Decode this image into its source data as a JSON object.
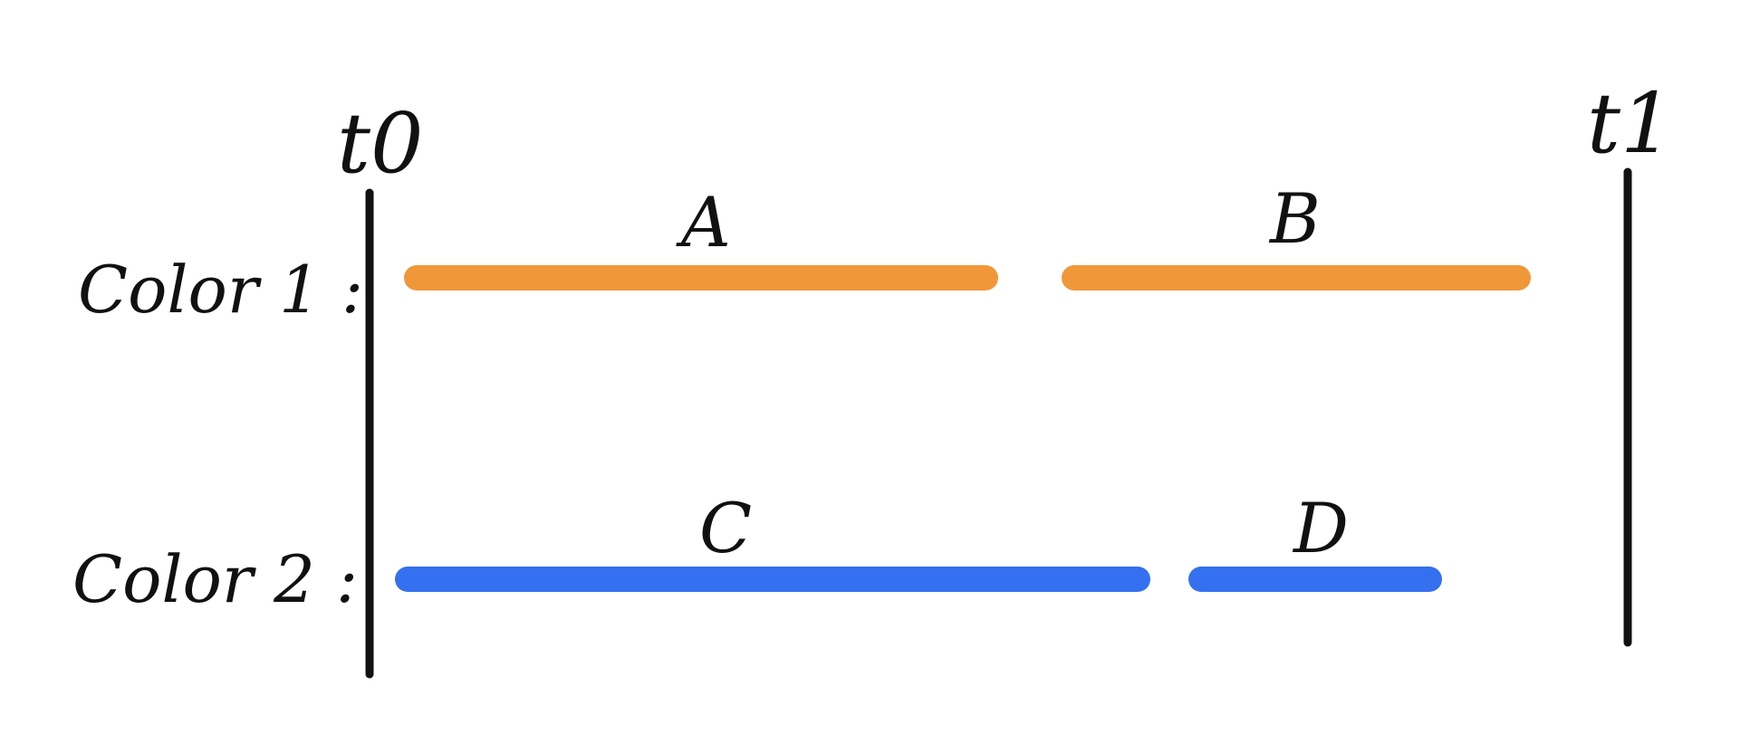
{
  "diagram": {
    "time_markers": {
      "start_label": "t0",
      "end_label": "t1"
    },
    "rows": [
      {
        "label": "Color 1 :",
        "color": "#F0973A",
        "segments": [
          {
            "label": "A"
          },
          {
            "label": "B"
          }
        ]
      },
      {
        "label": "Color 2 :",
        "color": "#3470F0",
        "segments": [
          {
            "label": "C"
          },
          {
            "label": "D"
          }
        ]
      }
    ]
  }
}
